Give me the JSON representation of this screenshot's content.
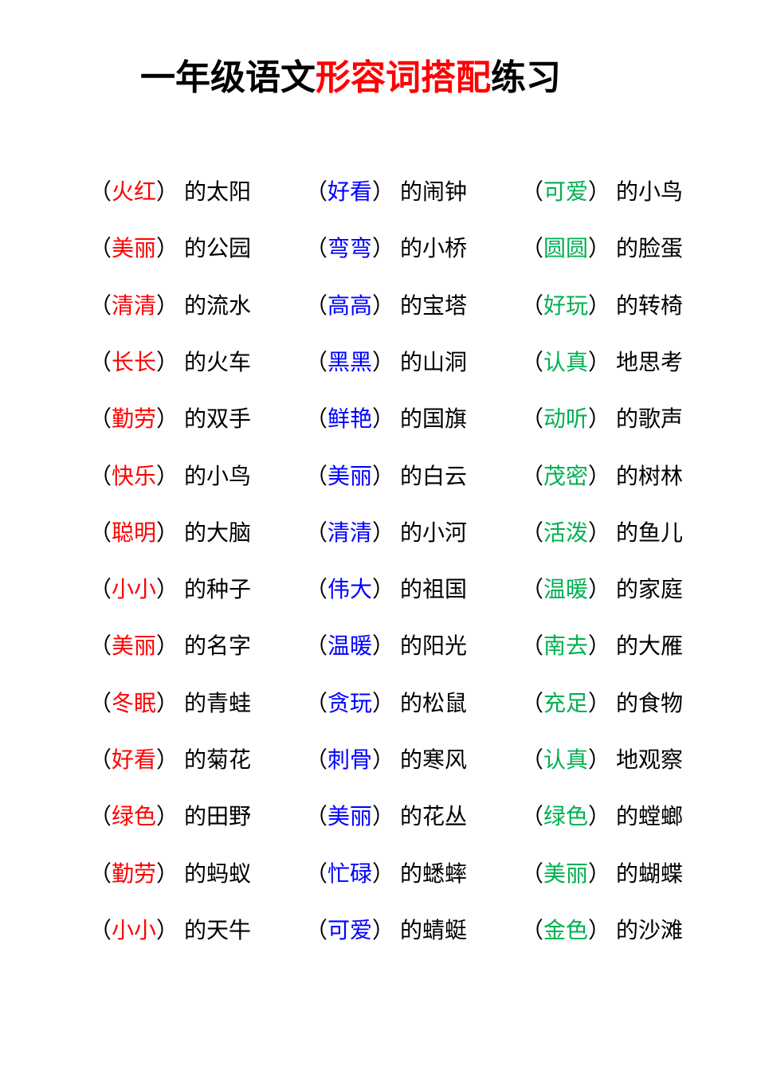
{
  "page": {
    "background": "#ffffff",
    "text_color": "#000000"
  },
  "title": {
    "prefix": "一年级语文",
    "highlight": "形容词搭配",
    "suffix": "练习",
    "highlight_color": "#ff0000"
  },
  "punctuation": {
    "open": "（",
    "close": "）"
  },
  "columns": [
    {
      "name": "red-column",
      "color": "#ff0000",
      "items": [
        {
          "adj": "火红",
          "rest": "的太阳"
        },
        {
          "adj": "美丽",
          "rest": "的公园"
        },
        {
          "adj": "清清",
          "rest": "的流水"
        },
        {
          "adj": "长长",
          "rest": "的火车"
        },
        {
          "adj": "勤劳",
          "rest": "的双手"
        },
        {
          "adj": "快乐",
          "rest": "的小鸟"
        },
        {
          "adj": "聪明",
          "rest": "的大脑"
        },
        {
          "adj": "小小",
          "rest": "的种子"
        },
        {
          "adj": "美丽",
          "rest": "的名字"
        },
        {
          "adj": "冬眠",
          "rest": "的青蛙"
        },
        {
          "adj": "好看",
          "rest": "的菊花"
        },
        {
          "adj": "绿色",
          "rest": "的田野"
        },
        {
          "adj": "勤劳",
          "rest": "的蚂蚁"
        },
        {
          "adj": "小小",
          "rest": "的天牛"
        }
      ]
    },
    {
      "name": "blue-column",
      "color": "#0000ff",
      "items": [
        {
          "adj": "好看",
          "rest": "的闹钟"
        },
        {
          "adj": "弯弯",
          "rest": "的小桥"
        },
        {
          "adj": "高高",
          "rest": "的宝塔"
        },
        {
          "adj": "黑黑",
          "rest": "的山洞"
        },
        {
          "adj": "鲜艳",
          "rest": "的国旗"
        },
        {
          "adj": "美丽",
          "rest": "的白云"
        },
        {
          "adj": "清清",
          "rest": "的小河"
        },
        {
          "adj": "伟大",
          "rest": "的祖国"
        },
        {
          "adj": "温暖",
          "rest": "的阳光"
        },
        {
          "adj": "贪玩",
          "rest": "的松鼠"
        },
        {
          "adj": "刺骨",
          "rest": "的寒风"
        },
        {
          "adj": "美丽",
          "rest": "的花丛"
        },
        {
          "adj": "忙碌",
          "rest": "的蟋蟀"
        },
        {
          "adj": "可爱",
          "rest": "的蜻蜓"
        }
      ]
    },
    {
      "name": "green-column",
      "color": "#00b050",
      "items": [
        {
          "adj": "可爱",
          "rest": "的小鸟"
        },
        {
          "adj": "圆圆",
          "rest": "的脸蛋"
        },
        {
          "adj": "好玩",
          "rest": "的转椅"
        },
        {
          "adj": "认真",
          "rest": "地思考"
        },
        {
          "adj": "动听",
          "rest": "的歌声"
        },
        {
          "adj": "茂密",
          "rest": "的树林"
        },
        {
          "adj": "活泼",
          "rest": "的鱼儿"
        },
        {
          "adj": "温暖",
          "rest": "的家庭"
        },
        {
          "adj": "南去",
          "rest": "的大雁"
        },
        {
          "adj": "充足",
          "rest": "的食物"
        },
        {
          "adj": "认真",
          "rest": "地观察"
        },
        {
          "adj": "绿色",
          "rest": "的螳螂"
        },
        {
          "adj": "美丽",
          "rest": "的蝴蝶"
        },
        {
          "adj": "金色",
          "rest": "的沙滩"
        }
      ]
    }
  ]
}
